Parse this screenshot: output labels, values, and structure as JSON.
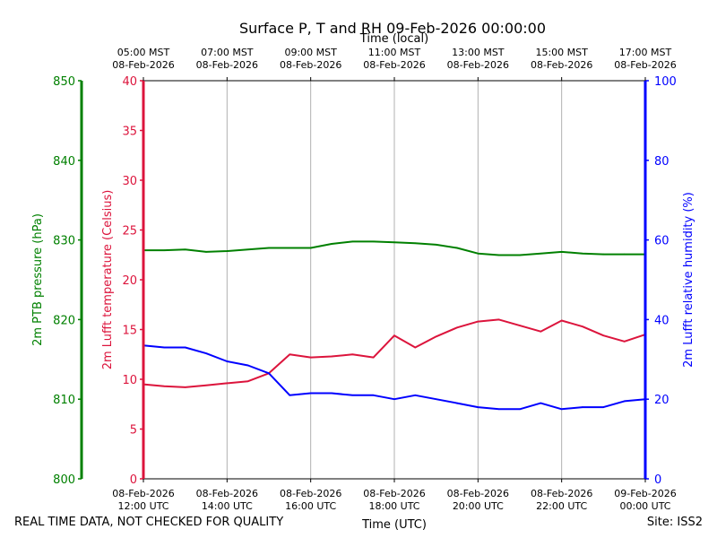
{
  "chart_data": {
    "type": "line",
    "title": "Surface P, T and RH 09-Feb-2026 00:00:00",
    "top_axis_label": "Time (local)",
    "xlabel": "Time (UTC)",
    "top_ticks": [
      {
        "hour": 0,
        "line1": "05:00 MST",
        "line2": "08-Feb-2026"
      },
      {
        "hour": 2,
        "line1": "07:00 MST",
        "line2": "08-Feb-2026"
      },
      {
        "hour": 4,
        "line1": "09:00 MST",
        "line2": "08-Feb-2026"
      },
      {
        "hour": 6,
        "line1": "11:00 MST",
        "line2": "08-Feb-2026"
      },
      {
        "hour": 8,
        "line1": "13:00 MST",
        "line2": "08-Feb-2026"
      },
      {
        "hour": 10,
        "line1": "15:00 MST",
        "line2": "08-Feb-2026"
      },
      {
        "hour": 12,
        "line1": "17:00 MST",
        "line2": "08-Feb-2026"
      }
    ],
    "bottom_ticks": [
      {
        "hour": 0,
        "line1": "08-Feb-2026",
        "line2": "12:00 UTC"
      },
      {
        "hour": 2,
        "line1": "08-Feb-2026",
        "line2": "14:00 UTC"
      },
      {
        "hour": 4,
        "line1": "08-Feb-2026",
        "line2": "16:00 UTC"
      },
      {
        "hour": 6,
        "line1": "08-Feb-2026",
        "line2": "18:00 UTC"
      },
      {
        "hour": 8,
        "line1": "08-Feb-2026",
        "line2": "20:00 UTC"
      },
      {
        "hour": 10,
        "line1": "08-Feb-2026",
        "line2": "22:00 UTC"
      },
      {
        "hour": 12,
        "line1": "09-Feb-2026",
        "line2": "00:00 UTC"
      }
    ],
    "xlim_hours": [
      0,
      12
    ],
    "axes": {
      "pressure": {
        "label": "2m PTB pressure (hPa)",
        "ylim": [
          800,
          850
        ],
        "ticks": [
          800,
          810,
          820,
          830,
          840,
          850
        ],
        "color": "#008000"
      },
      "temperature": {
        "label": "2m Lufft temperature (Celsius)",
        "ylim": [
          0,
          40
        ],
        "ticks": [
          0,
          5,
          10,
          15,
          20,
          25,
          30,
          35,
          40
        ],
        "color": "#dc143c"
      },
      "humidity": {
        "label": "2m Lufft relative humidity (%)",
        "ylim": [
          0,
          100
        ],
        "ticks": [
          0,
          20,
          40,
          60,
          80,
          100
        ],
        "color": "#0000ff"
      }
    },
    "series": [
      {
        "name": "2m PTB pressure",
        "axis": "pressure",
        "color": "#008000",
        "x": [
          0,
          0.5,
          1,
          1.5,
          2,
          2.5,
          3,
          3.5,
          4,
          4.5,
          5,
          5.5,
          6,
          6.5,
          7,
          7.5,
          8,
          8.5,
          9,
          9.5,
          10,
          10.5,
          11,
          11.5,
          12
        ],
        "values": [
          828.7,
          828.7,
          828.8,
          828.5,
          828.6,
          828.8,
          829.0,
          829.0,
          829.0,
          829.5,
          829.8,
          829.8,
          829.7,
          829.6,
          829.4,
          829.0,
          828.3,
          828.1,
          828.1,
          828.3,
          828.5,
          828.3,
          828.2,
          828.2,
          828.2
        ]
      },
      {
        "name": "2m Lufft temperature",
        "axis": "temperature",
        "color": "#dc143c",
        "x": [
          0,
          0.5,
          1,
          1.5,
          2,
          2.5,
          3,
          3.5,
          4,
          4.5,
          5,
          5.5,
          6,
          6.5,
          7,
          7.5,
          8,
          8.5,
          9,
          9.5,
          10,
          10.5,
          11,
          11.5,
          12
        ],
        "values": [
          9.5,
          9.3,
          9.2,
          9.4,
          9.6,
          9.8,
          10.6,
          12.5,
          12.2,
          12.3,
          12.5,
          12.2,
          14.4,
          13.2,
          14.3,
          15.2,
          15.8,
          16.0,
          15.4,
          14.8,
          15.9,
          15.3,
          14.4,
          13.8,
          14.5
        ]
      },
      {
        "name": "2m Lufft relative humidity",
        "axis": "humidity",
        "color": "#0000ff",
        "x": [
          0,
          0.5,
          1,
          1.5,
          2,
          2.5,
          3,
          3.5,
          4,
          4.5,
          5,
          5.5,
          6,
          6.5,
          7,
          7.5,
          8,
          8.5,
          9,
          9.5,
          10,
          10.5,
          11,
          11.5,
          12
        ],
        "values": [
          33.5,
          33.0,
          33.0,
          31.5,
          29.5,
          28.5,
          26.5,
          21.0,
          21.5,
          21.5,
          21.0,
          21.0,
          20.0,
          21.0,
          20.0,
          19.0,
          18.0,
          17.5,
          17.5,
          19.0,
          17.5,
          18.0,
          18.0,
          19.5,
          20.0
        ]
      }
    ]
  },
  "footer": {
    "left_note": "REAL TIME DATA, NOT CHECKED FOR QUALITY",
    "site": "Site: ISS2"
  }
}
